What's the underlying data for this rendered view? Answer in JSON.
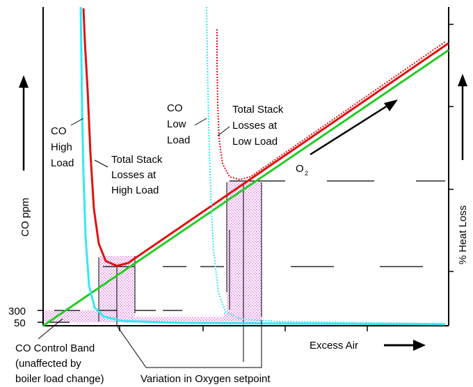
{
  "labels": {
    "y_left_axis": "CO  ppm",
    "y_right_axis": "% Heat Loss",
    "x_axis": "Excess Air",
    "tick_300": "300",
    "tick_50": "50",
    "co_high_load": [
      "CO",
      "High",
      "Load"
    ],
    "stack_high_load": [
      "Total Stack",
      "Losses at",
      "High Load"
    ],
    "co_low_load": [
      "CO",
      "Low",
      "Load"
    ],
    "stack_low_load": [
      "Total Stack",
      "Losses at",
      "Low Load"
    ],
    "o2": "O",
    "o2_sub": "2",
    "co_control_band": [
      "CO Control Band",
      "(unaffected by",
      "boiler load change)"
    ],
    "oxygen_setpoint": "Variation in Oxygen setpoint"
  },
  "colors": {
    "co_high": "#33e8f0",
    "stack_high": "#e01010",
    "oxygen": "#22cc22",
    "co_low": "#33e8f0",
    "stack_low": "#e01010",
    "band": "#e080e0"
  }
}
